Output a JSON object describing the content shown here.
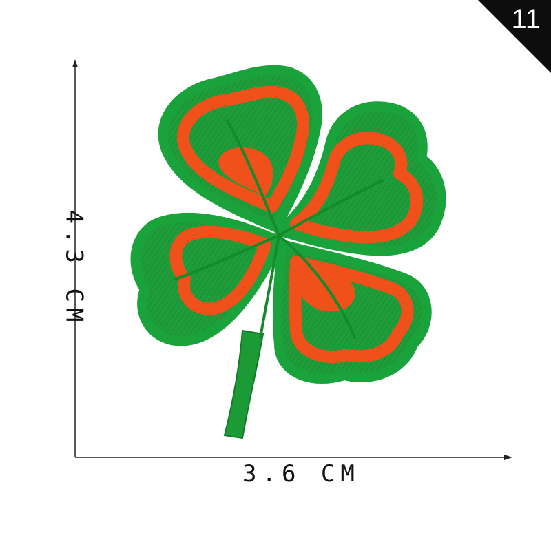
{
  "badge": {
    "number": "11"
  },
  "dimensions": {
    "width_label": "3.6 CM",
    "height_label": "4.3 CM"
  },
  "patch": {
    "subject": "four-leaf clover embroidered patch",
    "colors": {
      "leaf_green": "#1f9d3a",
      "leaf_dark": "#148a2c",
      "accent_orange": "#f0501a",
      "stem_green": "#1b9a35"
    }
  }
}
